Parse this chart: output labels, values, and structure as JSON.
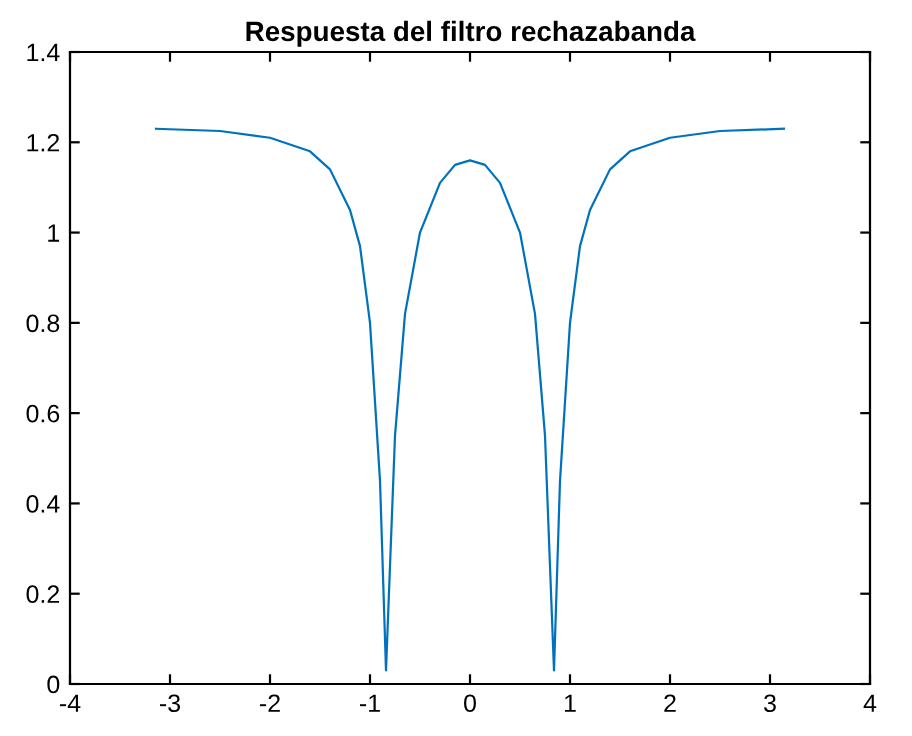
{
  "chart_data": {
    "type": "line",
    "title": "Respuesta del filtro rechazabanda",
    "x": [
      -3.14,
      -2.5,
      -2.0,
      -1.6,
      -1.4,
      -1.2,
      -1.1,
      -1.0,
      -0.9,
      -0.84,
      -0.75,
      -0.65,
      -0.5,
      -0.3,
      -0.15,
      0,
      0.15,
      0.3,
      0.5,
      0.65,
      0.75,
      0.84,
      0.9,
      1.0,
      1.1,
      1.2,
      1.4,
      1.6,
      2.0,
      2.5,
      3.14
    ],
    "series": [
      {
        "color": "#0072bd",
        "values": [
          1.23,
          1.225,
          1.21,
          1.18,
          1.14,
          1.05,
          0.97,
          0.8,
          0.45,
          0.03,
          0.55,
          0.82,
          1.0,
          1.11,
          1.15,
          1.16,
          1.15,
          1.11,
          1.0,
          0.82,
          0.55,
          0.03,
          0.45,
          0.8,
          0.97,
          1.05,
          1.14,
          1.18,
          1.21,
          1.225,
          1.23
        ]
      }
    ],
    "xlim": [
      -4,
      4
    ],
    "xticks": [
      -4,
      -3,
      -2,
      -1,
      0,
      1,
      2,
      3,
      4
    ],
    "ylim": [
      0,
      1.4
    ],
    "yticks": [
      0,
      0.2,
      0.4,
      0.6,
      0.8,
      1,
      1.2,
      1.4
    ],
    "grid": false,
    "legend": false
  }
}
